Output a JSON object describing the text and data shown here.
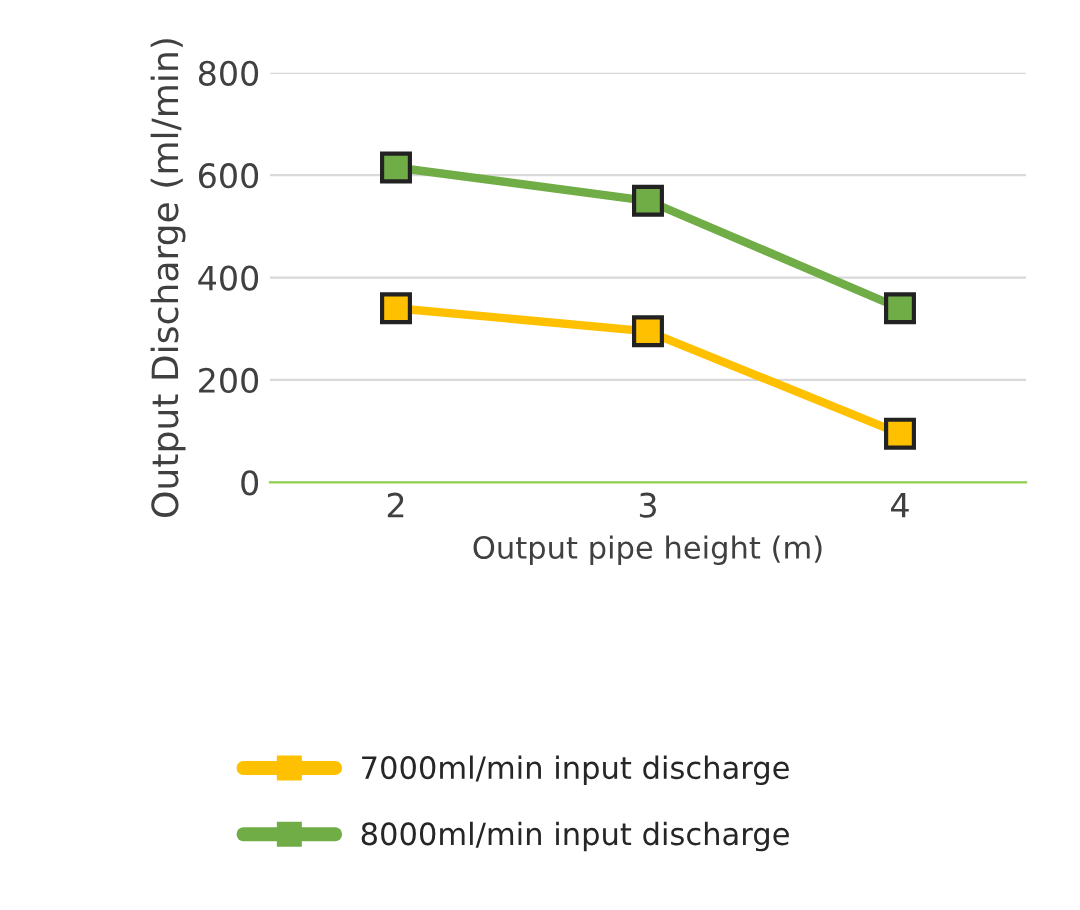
{
  "chart_data": {
    "type": "line",
    "xlabel": "Output pipe height (m)",
    "ylabel": "Output Discharge (ml/min)",
    "categories": [
      "2",
      "3",
      "4"
    ],
    "series": [
      {
        "name": "7000ml/min input discharge",
        "color": "#ffc000",
        "values": [
          340,
          295,
          95
        ]
      },
      {
        "name": "8000ml/min input discharge",
        "color": "#70ad47",
        "values": [
          615,
          550,
          340
        ]
      }
    ],
    "ylim": [
      0,
      800
    ],
    "yticks": [
      0,
      200,
      400,
      600,
      800
    ],
    "grid": "y",
    "legend": "bottom",
    "marker": "square",
    "line_style": "solid"
  }
}
